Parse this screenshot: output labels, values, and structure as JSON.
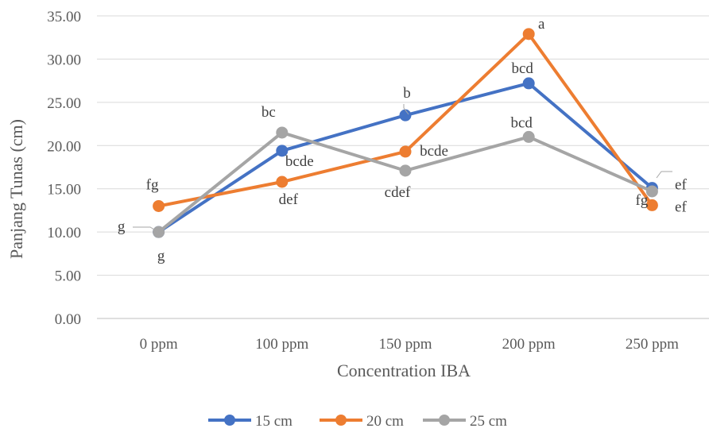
{
  "chart_data": {
    "type": "line",
    "title": "",
    "xlabel": "Concentration IBA",
    "ylabel": "Panjang Tunas (cm)",
    "categories": [
      "0 ppm",
      "100 ppm",
      "150 ppm",
      "200 ppm",
      "250 ppm"
    ],
    "ylim": [
      0,
      35
    ],
    "ytick_step": 5,
    "ytick_labels": [
      "0.00",
      "5.00",
      "10.00",
      "15.00",
      "20.00",
      "25.00",
      "30.00",
      "35.00"
    ],
    "grid": true,
    "legend_position": "bottom",
    "series": [
      {
        "name": "15 cm",
        "color": "#4472c4",
        "values": [
          10.0,
          19.4,
          23.5,
          27.2,
          15.1
        ],
        "labels": [
          "",
          "bcde",
          "b",
          "bcd",
          "ef"
        ]
      },
      {
        "name": "20 cm",
        "color": "#ed7d31",
        "values": [
          13.0,
          15.8,
          19.3,
          32.9,
          13.1
        ],
        "labels": [
          "fg",
          "def",
          "bcde",
          "a",
          "ef"
        ]
      },
      {
        "name": "25 cm",
        "color": "#a5a5a5",
        "values": [
          10.0,
          21.5,
          17.1,
          21.0,
          14.7
        ],
        "labels": [
          "g",
          "bc",
          "cdef",
          "bcd",
          "fg"
        ]
      }
    ],
    "extra_labels": [
      {
        "series_index": 0,
        "point_index": 0,
        "text": "g"
      }
    ]
  }
}
